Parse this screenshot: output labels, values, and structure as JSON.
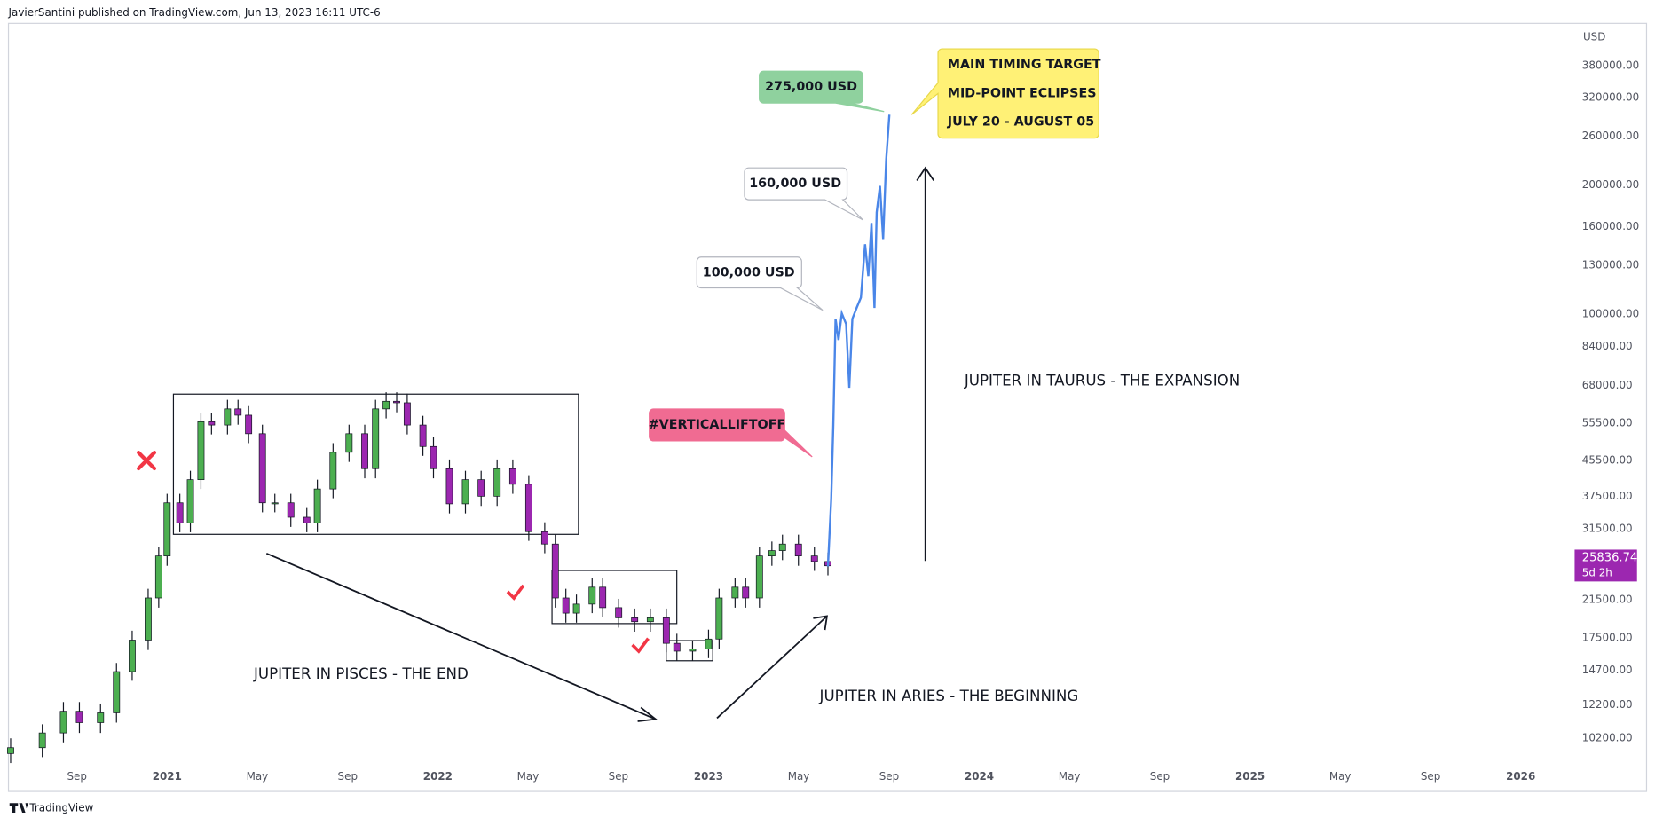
{
  "header": "JavierSantini published on TradingView.com, Jun 13, 2023 16:11 UTC-6",
  "footer": "TradingView",
  "chart_data": {
    "type": "candlestick",
    "currency": "USD",
    "log_scale": true,
    "grid": false,
    "up_color": "#4caf50",
    "down_color": "#9c27b0",
    "x": [
      2020.422,
      2020.539,
      2020.617,
      2020.676,
      2020.754,
      2020.813,
      2020.871,
      2020.93,
      2020.969,
      2021.0,
      2021.047,
      2021.086,
      2021.125,
      2021.164,
      2021.223,
      2021.262,
      2021.301,
      2021.352,
      2021.398,
      2021.457,
      2021.516,
      2021.555,
      2021.613,
      2021.672,
      2021.73,
      2021.77,
      2021.809,
      2021.848,
      2021.887,
      2021.945,
      2021.984,
      2022.043,
      2022.102,
      2022.16,
      2022.219,
      2022.277,
      2022.336,
      2022.395,
      2022.434,
      2022.473,
      2022.512,
      2022.57,
      2022.609,
      2022.668,
      2022.727,
      2022.785,
      2022.844,
      2022.883,
      2022.941,
      2023.0,
      2023.039,
      2023.098,
      2023.137,
      2023.188,
      2023.234,
      2023.273,
      2023.332,
      2023.391,
      2023.441
    ],
    "open": [
      9400,
      9700,
      10500,
      11800,
      11100,
      11700,
      14600,
      17300,
      21700,
      27200,
      36200,
      32500,
      41000,
      56000,
      55000,
      60000,
      58000,
      52500,
      36200,
      36200,
      33500,
      32500,
      39000,
      47500,
      52500,
      43500,
      60000,
      62500,
      62000,
      55000,
      49000,
      43500,
      36000,
      41000,
      37500,
      43500,
      40000,
      31000,
      29000,
      21700,
      20000,
      21000,
      23000,
      20600,
      19500,
      19100,
      19500,
      17000,
      16300,
      16500,
      17400,
      21700,
      23000,
      21700,
      27200,
      28000,
      29000,
      27200,
      26400
    ],
    "high": [
      10200,
      11000,
      12400,
      12400,
      12300,
      15300,
      18200,
      22800,
      28600,
      38000,
      38000,
      43000,
      58800,
      58800,
      63000,
      63000,
      60900,
      55100,
      38000,
      38000,
      35200,
      41000,
      49900,
      55100,
      55100,
      63000,
      65600,
      65600,
      65100,
      57800,
      51500,
      45700,
      43000,
      43000,
      45700,
      45700,
      42000,
      32600,
      30500,
      22800,
      22100,
      24200,
      24200,
      21600,
      20500,
      20500,
      20500,
      17900,
      17300,
      18300,
      22800,
      24200,
      24200,
      28600,
      29400,
      30500,
      30500,
      28600,
      27700
    ],
    "low": [
      8930,
      9220,
      9980,
      10500,
      10500,
      11100,
      13900,
      16400,
      20600,
      25800,
      30900,
      30900,
      39000,
      52300,
      52300,
      55100,
      49900,
      34400,
      34400,
      31800,
      30900,
      30900,
      37100,
      45100,
      41300,
      41300,
      57000,
      58900,
      52300,
      46600,
      41300,
      34200,
      34200,
      35600,
      35600,
      38000,
      29500,
      27600,
      20600,
      19000,
      19000,
      20000,
      19600,
      18500,
      18100,
      18100,
      16200,
      15500,
      15500,
      15700,
      16500,
      20600,
      20600,
      20600,
      25800,
      26600,
      25800,
      25100,
      24500
    ],
    "close": [
      9700,
      10500,
      11800,
      11100,
      11700,
      14600,
      17300,
      21700,
      27200,
      36200,
      32500,
      41000,
      56000,
      55000,
      60000,
      58000,
      52500,
      36200,
      36200,
      33500,
      32500,
      39000,
      47500,
      52500,
      43500,
      60000,
      62500,
      62000,
      55000,
      49000,
      43500,
      36000,
      41000,
      37500,
      43500,
      40000,
      31000,
      29000,
      21700,
      20000,
      21000,
      23000,
      20600,
      19500,
      19100,
      19500,
      17000,
      16300,
      16500,
      17400,
      21700,
      23000,
      21700,
      27200,
      28000,
      29000,
      27200,
      26400,
      25800
    ],
    "projection": {
      "color": "#4a86e8",
      "x": [
        2023.441,
        2023.453,
        2023.461,
        2023.469,
        2023.48,
        2023.492,
        2023.508,
        2023.52,
        2023.531,
        2023.547,
        2023.563,
        2023.578,
        2023.59,
        2023.602,
        2023.613,
        2023.621,
        2023.633,
        2023.645,
        2023.656,
        2023.668
      ],
      "values": [
        25700,
        36900,
        55100,
        97400,
        86900,
        100300,
        94700,
        67200,
        97400,
        103200,
        109200,
        145400,
        122500,
        163000,
        103200,
        172600,
        199000,
        149600,
        229600,
        291900
      ]
    },
    "last_price": {
      "value": 25836.74,
      "countdown": "5d 2h",
      "color": "#9c27b0"
    },
    "callouts": [
      "275,000 USD",
      "160,000 USD",
      "100,000 USD",
      "#VERTICALLIFTOFF"
    ],
    "target_box": [
      "MAIN TIMING TARGET",
      "MID-POINT ECLIPSES",
      "JULY 20 - AUGUST 05"
    ],
    "phase_labels": [
      "JUPITER IN PISCES - THE END",
      "JUPITER IN ARIES - THE BEGINNING",
      "JUPITER IN TAURUS - THE EXPANSION"
    ],
    "xlim": [
      2020.414,
      2026.164
    ],
    "ylim": [
      8843,
      477000
    ],
    "xticks": [
      {
        "value": 2020.667,
        "label": "Sep"
      },
      2021,
      {
        "value": 2021.333,
        "label": "May"
      },
      {
        "value": 2021.667,
        "label": "Sep"
      },
      2022,
      {
        "value": 2022.333,
        "label": "May"
      },
      {
        "value": 2022.667,
        "label": "Sep"
      },
      2023,
      {
        "value": 2023.333,
        "label": "May"
      },
      {
        "value": 2023.667,
        "label": "Sep"
      },
      2024,
      {
        "value": 2024.333,
        "label": "May"
      },
      {
        "value": 2024.667,
        "label": "Sep"
      },
      2025,
      {
        "value": 2025.333,
        "label": "May"
      },
      {
        "value": 2025.667,
        "label": "Sep"
      },
      2026
    ],
    "yticks": [
      {
        "value": 10200,
        "label": "10200.00"
      },
      {
        "value": 12200,
        "label": "12200.00"
      },
      {
        "value": 14700,
        "label": "14700.00"
      },
      {
        "value": 17500,
        "label": "17500.00"
      },
      {
        "value": 21500,
        "label": "21500.00"
      },
      {
        "value": 31500,
        "label": "31500.00"
      },
      {
        "value": 37500,
        "label": "37500.00"
      },
      {
        "value": 45500,
        "label": "45500.00"
      },
      {
        "value": 55500,
        "label": "55500.00"
      },
      {
        "value": 68000,
        "label": "68000.00"
      },
      {
        "value": 84000,
        "label": "84000.00"
      },
      {
        "value": 100000,
        "label": "100000.00"
      },
      {
        "value": 130000,
        "label": "130000.00"
      },
      {
        "value": 160000,
        "label": "160000.00"
      },
      {
        "value": 200000,
        "label": "200000.00"
      },
      {
        "value": 260000,
        "label": "260000.00"
      },
      {
        "value": 320000,
        "label": "320000.00"
      },
      {
        "value": 380000,
        "label": "380000.00"
      }
    ]
  }
}
